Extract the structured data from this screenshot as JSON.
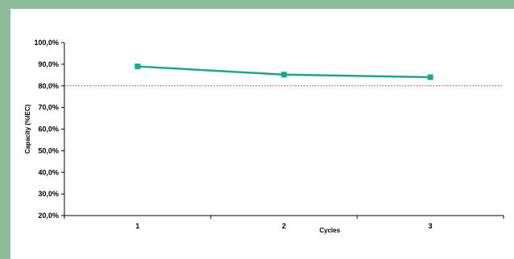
{
  "colors": {
    "background": "#8fbc98",
    "plot_background": "#ffffff",
    "series": "#1aa595",
    "threshold": "#c0392b"
  },
  "chart_data": {
    "type": "line",
    "title": "",
    "xlabel": "Cycles",
    "ylabel": "Capacity (%IEC)",
    "categories": [
      "1",
      "2",
      "3"
    ],
    "series": [
      {
        "values": [
          89.0,
          85.2,
          84.0
        ]
      }
    ],
    "reference_lines": [
      {
        "y": 80.0,
        "style": "dotted"
      }
    ],
    "yticks": [
      "20,0%",
      "30,0%",
      "40,0%",
      "50,0%",
      "60,0%",
      "70,0%",
      "80,0%",
      "90,0%",
      "100,0%"
    ],
    "ylim": [
      20,
      100
    ],
    "grid": false,
    "legend": "none"
  }
}
